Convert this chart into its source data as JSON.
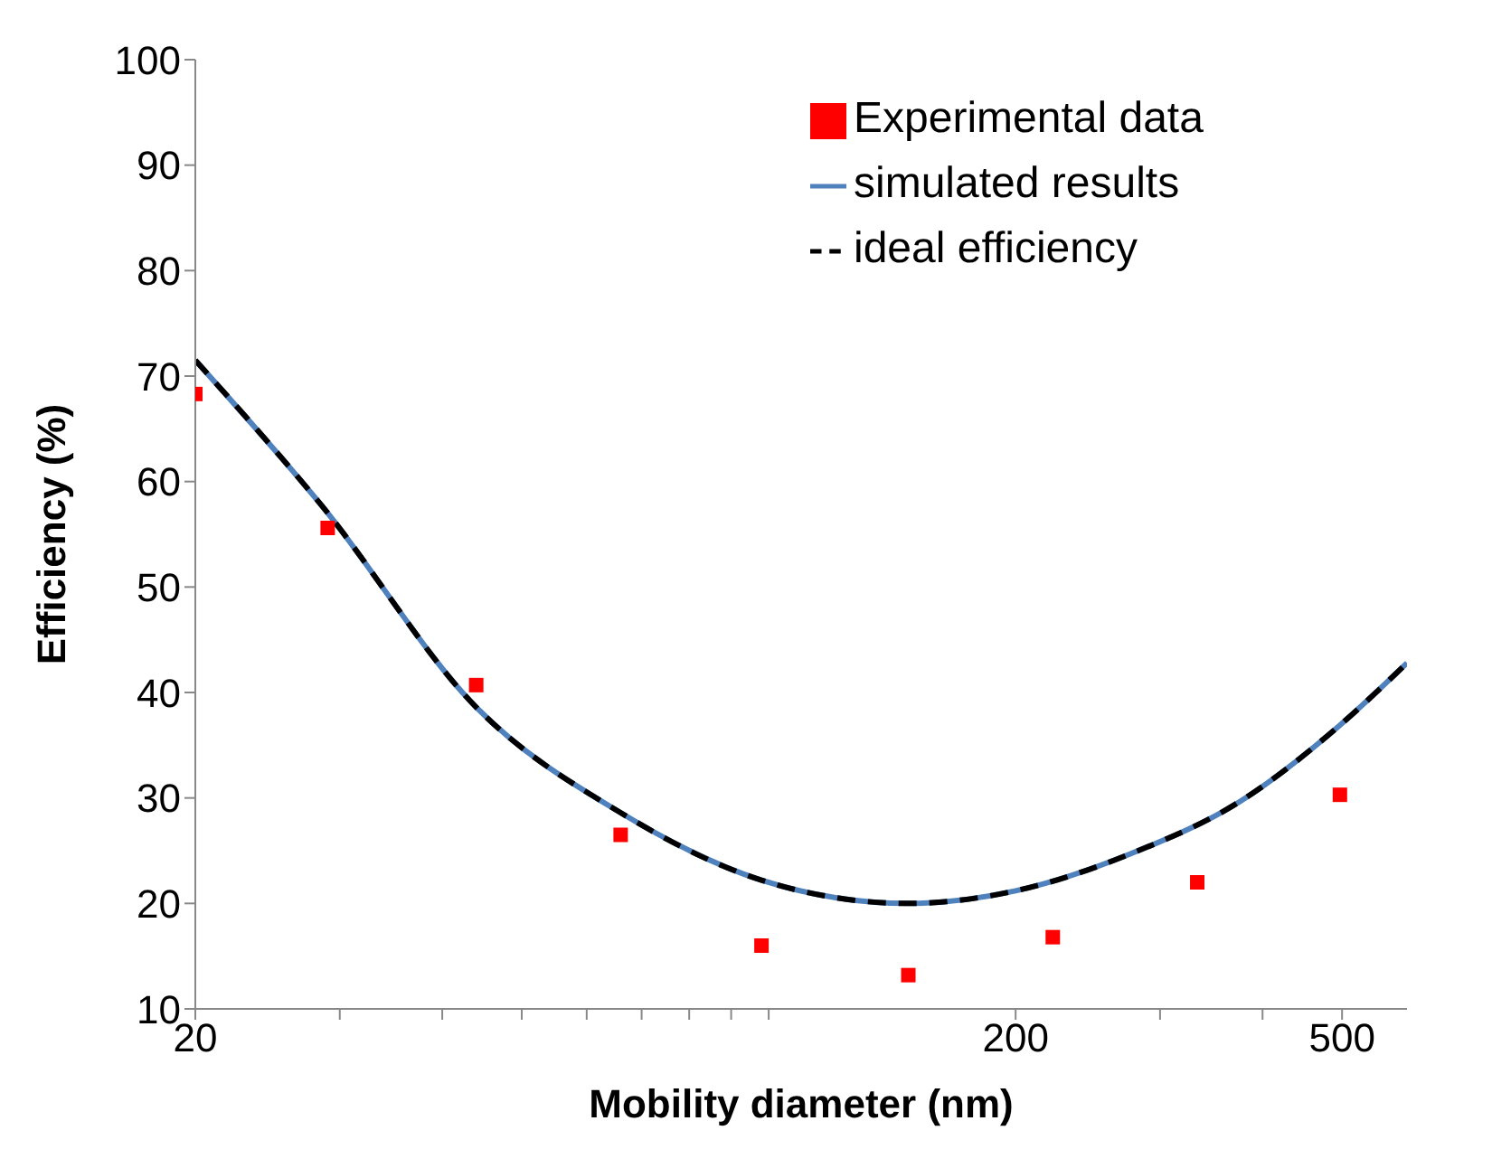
{
  "chart_data": {
    "type": "scatter",
    "xlabel": "Mobility diameter (nm)",
    "ylabel": "Efficiency (%)",
    "log": "x",
    "xlim": [
      20,
      600
    ],
    "ylim": [
      10,
      100
    ],
    "xticks": [
      20,
      {
        "value": 30,
        "label": null
      },
      {
        "value": 40,
        "label": null
      },
      {
        "value": 50,
        "label": null
      },
      {
        "value": 60,
        "label": null
      },
      {
        "value": 70,
        "label": null
      },
      {
        "value": 80,
        "label": null
      },
      {
        "value": 90,
        "label": null
      },
      {
        "value": 100,
        "label": null
      },
      200,
      {
        "value": 300,
        "label": null
      },
      {
        "value": 400,
        "label": null
      },
      500
    ],
    "yticks": [
      10,
      20,
      30,
      40,
      50,
      60,
      70,
      80,
      90,
      100
    ],
    "grid": false,
    "legend": "top right",
    "series": [
      {
        "name": "Experimental data",
        "marker": "square",
        "color": "#ff0000",
        "x": [
          20,
          29,
          44,
          66,
          98,
          148,
          222,
          333,
          497
        ],
        "values": [
          68.3,
          55.6,
          40.7,
          26.5,
          16,
          13.2,
          16.8,
          22,
          30.3
        ]
      },
      {
        "name": "simulated results",
        "type": "line",
        "line_style": "solid",
        "marker": "none",
        "color": "#4f81bd",
        "x": [
          20,
          28.6,
          44,
          66,
          98,
          148,
          200,
          276,
          376,
          497,
          600
        ],
        "values": [
          71.5,
          57.6,
          38.6,
          28.6,
          22.2,
          20,
          21.2,
          24.7,
          29.7,
          36.9,
          42.8
        ]
      },
      {
        "name": "ideal efficiency",
        "type": "line",
        "line_style": "dashed",
        "marker": "none",
        "color": "#000000",
        "x": [
          20,
          28.6,
          44,
          66,
          98,
          148,
          200,
          276,
          376,
          497,
          600
        ],
        "values": [
          71.5,
          57.6,
          38.6,
          28.6,
          22.2,
          20,
          21.2,
          24.7,
          29.7,
          36.9,
          42.8
        ]
      }
    ]
  }
}
